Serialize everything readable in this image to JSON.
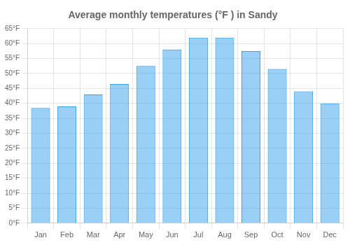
{
  "chart_data": {
    "type": "bar",
    "title": "Average monthly temperatures (°F ) in Sandy",
    "categories": [
      "Jan",
      "Feb",
      "Mar",
      "Apr",
      "May",
      "Jun",
      "Jul",
      "Aug",
      "Sep",
      "Oct",
      "Nov",
      "Dec"
    ],
    "values": [
      38.5,
      39.0,
      43.0,
      46.5,
      52.5,
      58.0,
      62.0,
      62.0,
      57.5,
      51.5,
      44.0,
      40.0
    ],
    "ylim": [
      0,
      65
    ],
    "yticks": [
      {
        "value": 0,
        "label": "0°F"
      },
      {
        "value": 5,
        "label": "5°F"
      },
      {
        "value": 10,
        "label": "10°F"
      },
      {
        "value": 15,
        "label": "15°F"
      },
      {
        "value": 20,
        "label": "20°F"
      },
      {
        "value": 25,
        "label": "25°F"
      },
      {
        "value": 30,
        "label": "30°F"
      },
      {
        "value": 35,
        "label": "35°F"
      },
      {
        "value": 40,
        "label": "40°F"
      },
      {
        "value": 45,
        "label": "45°F"
      },
      {
        "value": 50,
        "label": "50°F"
      },
      {
        "value": 55,
        "label": "55°F"
      },
      {
        "value": 60,
        "label": "60°F"
      },
      {
        "value": 65,
        "label": "65°F"
      }
    ],
    "grid": true
  }
}
